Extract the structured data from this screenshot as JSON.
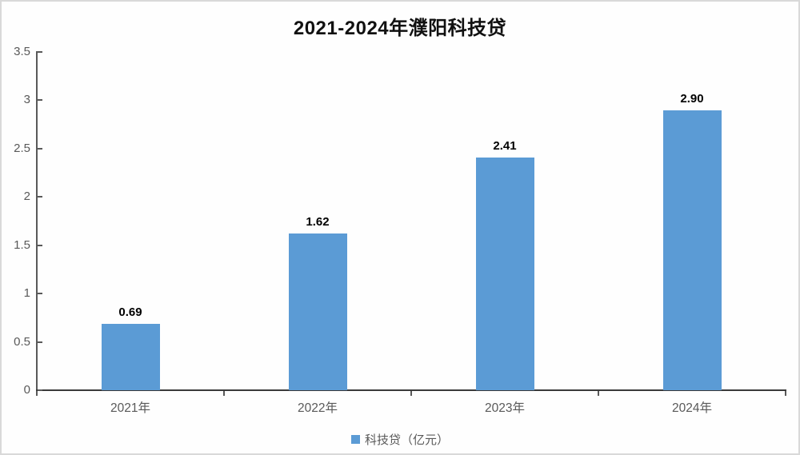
{
  "chart_data": {
    "type": "bar",
    "title": "2021-2024年濮阳科技贷",
    "categories": [
      "2021年",
      "2022年",
      "2023年",
      "2024年"
    ],
    "values": [
      0.69,
      1.62,
      2.41,
      2.9
    ],
    "value_labels": [
      "0.69",
      "1.62",
      "2.41",
      "2.90"
    ],
    "series": [
      {
        "name": "科技贷（亿元）",
        "values": [
          0.69,
          1.62,
          2.41,
          2.9
        ]
      }
    ],
    "legend_label": "科技贷（亿元）",
    "legend_position": "bottom",
    "xlabel": "",
    "ylabel": "",
    "ylim": [
      0,
      3.5
    ],
    "ytick_step": 0.5,
    "yticks": [
      "0",
      "0.5",
      "1",
      "1.5",
      "2",
      "2.5",
      "3",
      "3.5"
    ],
    "grid": false,
    "colors": {
      "bar": "#5b9bd5",
      "axis": "#595959",
      "x_axis_line": "#3a3a3a",
      "tick_label": "#595959",
      "data_label": "#000000",
      "title": "#111111",
      "legend_text": "#595959",
      "frame_border": "#d9d9d9",
      "background": "#fefefe"
    }
  }
}
